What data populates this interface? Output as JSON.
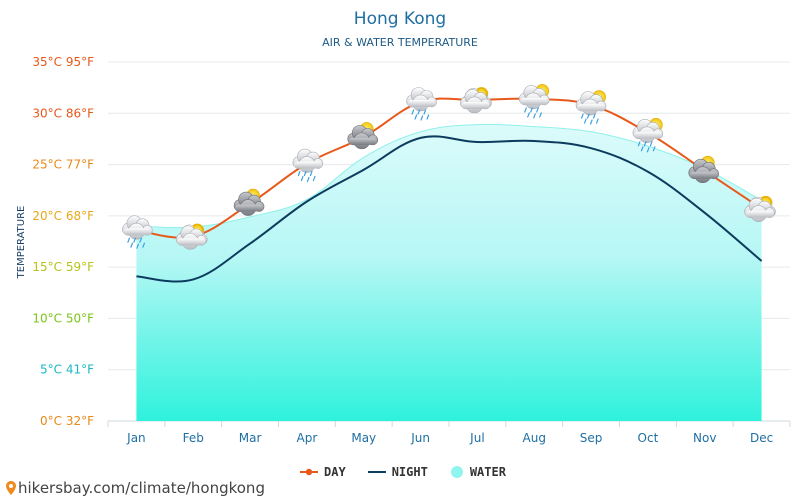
{
  "chart_data": {
    "type": "line",
    "title": "Hong Kong",
    "subtitle": "AIR & WATER TEMPERATURE",
    "ylabel": "TEMPERATURE",
    "ylim": [
      0,
      35
    ],
    "categories": [
      "Jan",
      "Feb",
      "Mar",
      "Apr",
      "May",
      "Jun",
      "Jul",
      "Aug",
      "Sep",
      "Oct",
      "Nov",
      "Dec"
    ],
    "yticks": [
      {
        "value": 35,
        "label": "35°C 95°F",
        "color": "#e8581a"
      },
      {
        "value": 30,
        "label": "30°C 86°F",
        "color": "#e8581a"
      },
      {
        "value": 25,
        "label": "25°C 77°F",
        "color": "#e88a1a"
      },
      {
        "value": 20,
        "label": "20°C 68°F",
        "color": "#e8a81a"
      },
      {
        "value": 15,
        "label": "15°C 59°F",
        "color": "#b6c41a"
      },
      {
        "value": 10,
        "label": "10°C 50°F",
        "color": "#7cc41a"
      },
      {
        "value": 5,
        "label": "5°C 41°F",
        "color": "#1ab8c4"
      },
      {
        "value": 0,
        "label": "0°C 32°F",
        "color": "#e88a1a"
      }
    ],
    "series": [
      {
        "name": "DAY",
        "color": "#e8581a",
        "values": [
          18.6,
          18.0,
          21.2,
          25.1,
          27.7,
          31.1,
          31.3,
          31.4,
          30.8,
          28.1,
          24.4,
          20.7
        ]
      },
      {
        "name": "NIGHT",
        "color": "#0d3b5e",
        "values": [
          14.1,
          13.8,
          17.3,
          21.4,
          24.5,
          27.6,
          27.2,
          27.3,
          26.6,
          24.3,
          20.3,
          15.6
        ]
      },
      {
        "name": "WATER",
        "color": "#8ff5ee",
        "values": [
          19.0,
          18.9,
          19.9,
          21.6,
          25.7,
          28.2,
          28.9,
          28.7,
          28.2,
          26.8,
          24.6,
          21.5
        ]
      }
    ],
    "weather_icons": [
      "rain-cloud-icon",
      "sun-cloud-icon",
      "sun-dark-cloud-icon",
      "rain-cloud-icon",
      "sun-dark-cloud-icon",
      "rain-cloud-icon",
      "sun-cloud-icon",
      "rain-sun-cloud-icon",
      "rain-sun-cloud-icon",
      "rain-sun-cloud-icon",
      "sun-dark-cloud-icon",
      "sun-cloud-icon"
    ],
    "legend_position": "bottom",
    "grid": true
  },
  "footer": {
    "source": "hikersbay.com/climate/hongkong"
  }
}
